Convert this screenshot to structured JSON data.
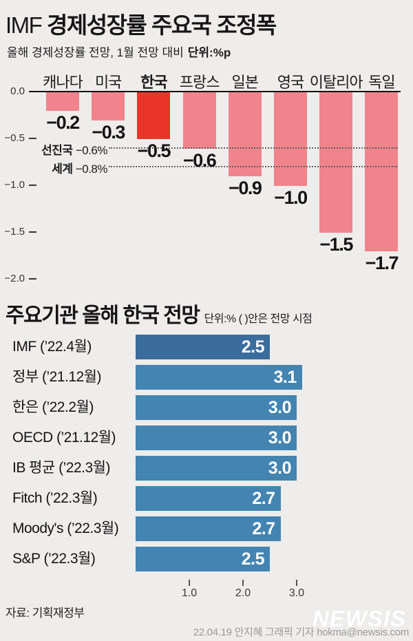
{
  "colors": {
    "background": "#eeedeb",
    "bar_pink": "#f0838c",
    "bar_red_highlight": "#e9352a",
    "bar_blue": "#4384b1",
    "bar_blue_dark_highlight": "#3a6c9c",
    "text_dark": "#141414",
    "credit_gray": "#9a9a9a",
    "logo_white": "#ffffff"
  },
  "top_chart": {
    "title_prefix": "IMF",
    "title_rest": " 경제성장률 주요국 조정폭",
    "subtitle": "올해 경제성장률 전망, 1월 전망 대비",
    "subtitle_unit": "단위:%p"
  },
  "bottom_chart": {
    "title": "주요기관 올해 한국 전망",
    "subtitle": "단위:% ( )안은 전망 시점"
  },
  "footer": {
    "source": "자료: 기획재정부",
    "logo": "NEWSIS",
    "credit": "22.04.19 안지혜 그래픽 기자 hokma@newsis.com"
  },
  "chart_data": [
    {
      "type": "bar",
      "orientation": "vertical",
      "title": "IMF 경제성장률 주요국 조정폭",
      "subtitle": "올해 경제성장률 전망, 1월 전망 대비",
      "unit": "%p",
      "categories": [
        "캐나다",
        "미국",
        "한국",
        "프랑스",
        "일본",
        "영국",
        "이탈리아",
        "독일"
      ],
      "values": [
        -0.2,
        -0.3,
        -0.5,
        -0.6,
        -0.9,
        -1.0,
        -1.5,
        -1.7
      ],
      "value_labels": [
        "−0.2",
        "−0.3",
        "−0.5",
        "−0.6",
        "−0.9",
        "−1.0",
        "−1.5",
        "−1.7"
      ],
      "highlight_index": 2,
      "ylim": [
        -2.0,
        0.0
      ],
      "y_ticks": [
        0.0,
        -0.5,
        -1.0,
        -1.5,
        -2.0
      ],
      "y_tick_labels": [
        "0.0",
        "−0.5",
        "−1.0",
        "−1.5",
        "−2.0"
      ],
      "grid": false,
      "reference_lines": [
        {
          "label": "선진국",
          "value": -0.6,
          "value_label": "−0.6%"
        },
        {
          "label": "세계",
          "value": -0.8,
          "value_label": "−0.8%"
        }
      ]
    },
    {
      "type": "bar",
      "orientation": "horizontal",
      "title": "주요기관 올해 한국 전망",
      "unit": "%",
      "note": "( )안은 전망 시점",
      "categories": [
        "IMF (’22.4월)",
        "정부 (’21.12월)",
        "한은 (’22.2월)",
        "OECD (’21.12월)",
        "IB 평균 (’22.3월)",
        "Fitch (’22.3월)",
        "Moody's (’22.3월)",
        "S&P (’22.3월)"
      ],
      "values": [
        2.5,
        3.1,
        3.0,
        3.0,
        3.0,
        2.7,
        2.7,
        2.5
      ],
      "value_labels": [
        "2.5",
        "3.1",
        "3.0",
        "3.0",
        "3.0",
        "2.7",
        "2.7",
        "2.5"
      ],
      "highlight_index": 0,
      "xlim": [
        0,
        3.5
      ],
      "x_ticks": [
        1.0,
        2.0,
        3.0
      ],
      "x_tick_labels": [
        "1.0",
        "2.0",
        "3.0"
      ],
      "grid": false
    }
  ]
}
